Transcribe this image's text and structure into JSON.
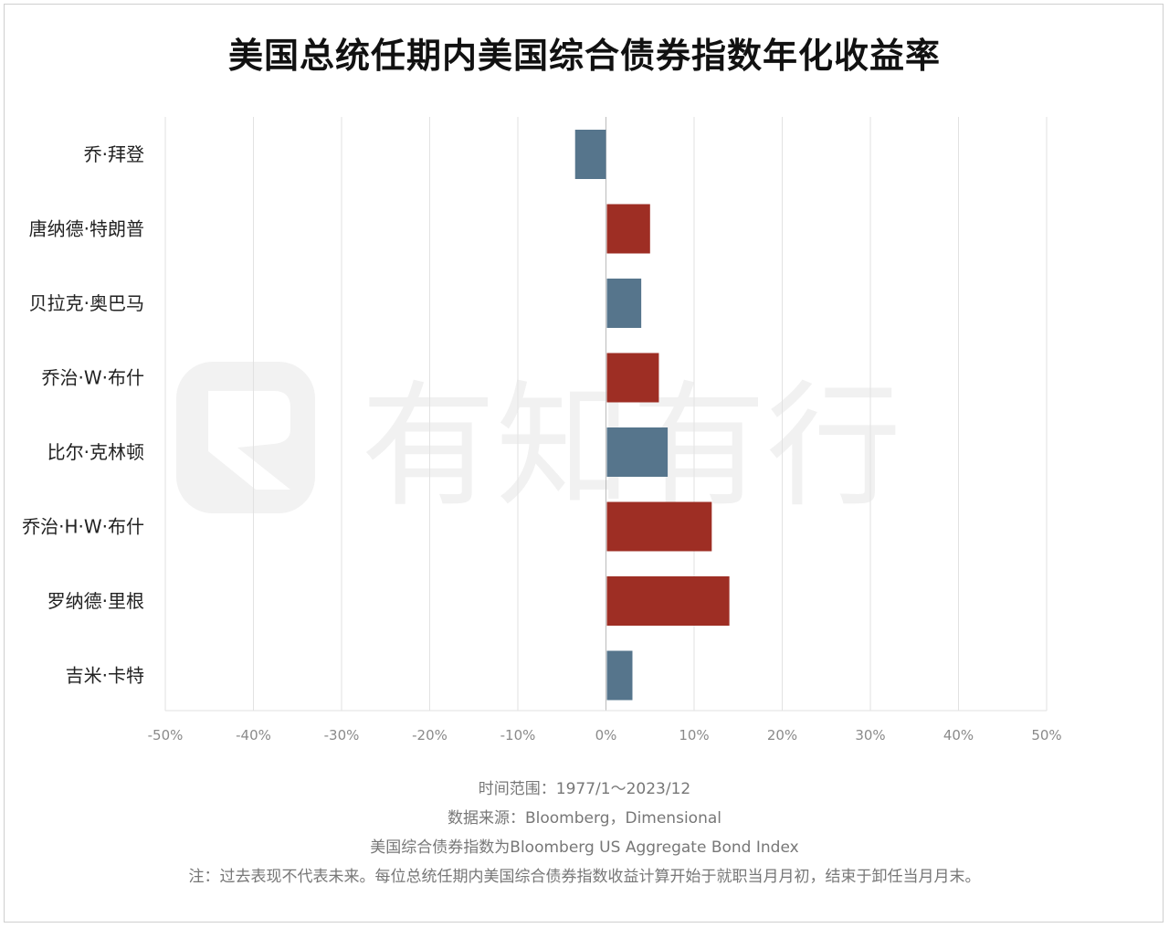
{
  "chart_data": {
    "type": "bar",
    "orientation": "horizontal",
    "title": "美国总统任期内美国综合债券指数年化收益率",
    "categories": [
      "乔·拜登",
      "唐纳德·特朗普",
      "贝拉克·奥巴马",
      "乔治·W·布什",
      "比尔·克林顿",
      "乔治·H·W·布什",
      "罗纳德·里根",
      "吉米·卡特"
    ],
    "values": [
      -3.5,
      4.9,
      3.9,
      5.9,
      6.9,
      11.9,
      13.9,
      2.9
    ],
    "value_unit": "%",
    "party_colors": [
      "#56758c",
      "#9e2e24",
      "#56758c",
      "#9e2e24",
      "#56758c",
      "#9e2e24",
      "#9e2e24",
      "#56758c"
    ],
    "xlim": [
      -50,
      50
    ],
    "xticks": [
      -50,
      -40,
      -30,
      -20,
      -10,
      0,
      10,
      20,
      30,
      40,
      50
    ],
    "xtick_labels": [
      "-50%",
      "-40%",
      "-30%",
      "-20%",
      "-10%",
      "0%",
      "10%",
      "20%",
      "30%",
      "40%",
      "50%"
    ],
    "grid": "vertical",
    "legend": "none"
  },
  "watermark": {
    "text": "有知有行"
  },
  "footer": {
    "line1": "时间范围：1977/1～2023/12",
    "line2": "数据来源：Bloomberg，Dimensional",
    "line3": "美国综合债券指数为Bloomberg US Aggregate Bond Index",
    "line4": "注：过去表现不代表未来。每位总统任期内美国综合债券指数收益计算开始于就职当月月初，结束于卸任当月月末。"
  },
  "colors": {
    "grid": "#e2e2e2",
    "axis": "#bcbcbc",
    "tick_text": "#8a8a8a",
    "category_text": "#222222",
    "watermark": "#f1f1f1"
  }
}
